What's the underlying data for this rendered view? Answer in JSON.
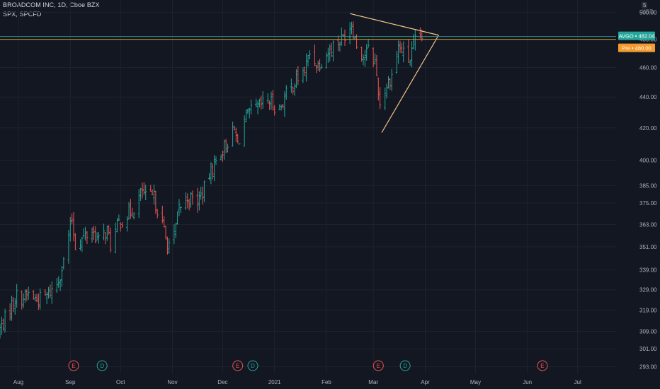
{
  "header": {
    "title": "BROADCOM INC, 1D, Cboe BZX",
    "subtitle": "SPX, SPCFD"
  },
  "scale": {
    "mode_letter": "5",
    "currency": "USD"
  },
  "colors": {
    "background": "#131722",
    "up": "#26a69a",
    "down": "#ef5350",
    "axis_text": "#b2b5be",
    "grid": "#1e222d",
    "trendline": "#f5c48a",
    "last_price": "#26a69a",
    "pre_market": "#f59a2c"
  },
  "price_labels": {
    "last": {
      "text": "AVGO • 482.04",
      "value": 482.04
    },
    "pre": {
      "text": "Pre • 480.00",
      "value": 480.0
    }
  },
  "chart_data": {
    "type": "ohlc",
    "title": "BROADCOM INC, 1D, Cboe BZX",
    "scale": "log",
    "ylim": [
      290,
      505
    ],
    "yticks": [
      293,
      301,
      309,
      319,
      329,
      339,
      351,
      363,
      375,
      385,
      400,
      420,
      440,
      460,
      480,
      500
    ],
    "xticks": [
      "Aug",
      "Sep",
      "Oct",
      "Nov",
      "Dec",
      "2021",
      "Feb",
      "Mar",
      "Apr",
      "May",
      "Jun",
      "Jul"
    ],
    "xtick_dates": [
      "2020-08-01",
      "2020-09-01",
      "2020-10-01",
      "2020-11-01",
      "2020-12-01",
      "2021-01-01",
      "2021-02-01",
      "2021-03-01",
      "2021-04-01",
      "2021-05-01",
      "2021-06-01",
      "2021-07-01"
    ],
    "xlim": [
      "2020-07-21",
      "2021-07-24"
    ],
    "path_points": [
      [
        "2020-07-21",
        310
      ],
      [
        "2020-07-23",
        313
      ],
      [
        "2020-07-28",
        322
      ],
      [
        "2020-07-31",
        326
      ],
      [
        "2020-08-04",
        325
      ],
      [
        "2020-08-07",
        327
      ],
      [
        "2020-08-12",
        324
      ],
      [
        "2020-08-18",
        326
      ],
      [
        "2020-08-24",
        332
      ],
      [
        "2020-08-28",
        343
      ],
      [
        "2020-09-02",
        366
      ],
      [
        "2020-09-04",
        352
      ],
      [
        "2020-09-09",
        356
      ],
      [
        "2020-09-14",
        360
      ],
      [
        "2020-09-18",
        354
      ],
      [
        "2020-09-23",
        360
      ],
      [
        "2020-09-25",
        352
      ],
      [
        "2020-09-30",
        364
      ],
      [
        "2020-10-05",
        368
      ],
      [
        "2020-10-09",
        372
      ],
      [
        "2020-10-14",
        382
      ],
      [
        "2020-10-16",
        378
      ],
      [
        "2020-10-21",
        378
      ],
      [
        "2020-10-26",
        363
      ],
      [
        "2020-10-29",
        352
      ],
      [
        "2020-11-02",
        356
      ],
      [
        "2020-11-05",
        372
      ],
      [
        "2020-11-10",
        378
      ],
      [
        "2020-11-16",
        376
      ],
      [
        "2020-11-20",
        383
      ],
      [
        "2020-11-24",
        394
      ],
      [
        "2020-11-30",
        405
      ],
      [
        "2020-12-03",
        410
      ],
      [
        "2020-12-08",
        418
      ],
      [
        "2020-12-10",
        410
      ],
      [
        "2020-12-14",
        425
      ],
      [
        "2020-12-18",
        430
      ],
      [
        "2020-12-22",
        433
      ],
      [
        "2020-12-28",
        438
      ],
      [
        "2021-01-04",
        432
      ],
      [
        "2021-01-08",
        442
      ],
      [
        "2021-01-13",
        450
      ],
      [
        "2021-01-19",
        458
      ],
      [
        "2021-01-22",
        470
      ],
      [
        "2021-01-27",
        462
      ],
      [
        "2021-02-01",
        470
      ],
      [
        "2021-02-05",
        476
      ],
      [
        "2021-02-10",
        480
      ],
      [
        "2021-02-16",
        492
      ],
      [
        "2021-02-19",
        476
      ],
      [
        "2021-02-23",
        468
      ],
      [
        "2021-02-26",
        472
      ],
      [
        "2021-03-02",
        464
      ],
      [
        "2021-03-05",
        435
      ],
      [
        "2021-03-09",
        448
      ],
      [
        "2021-03-12",
        455
      ],
      [
        "2021-03-16",
        475
      ],
      [
        "2021-03-19",
        470
      ],
      [
        "2021-03-23",
        466
      ],
      [
        "2021-03-26",
        478
      ],
      [
        "2021-03-30",
        482
      ]
    ],
    "last_price": 482.04,
    "pre_market_price": 480.0,
    "trendlines": [
      {
        "from": [
          "2021-02-15",
          499
        ],
        "to": [
          "2021-04-09",
          483
        ]
      },
      {
        "from": [
          "2021-03-06",
          417
        ],
        "to": [
          "2021-04-09",
          483
        ]
      }
    ],
    "events": [
      {
        "type": "E",
        "date": "2020-09-03",
        "color": "#ef5350"
      },
      {
        "type": "D",
        "date": "2020-09-20",
        "color": "#26a69a"
      },
      {
        "type": "E",
        "date": "2020-12-10",
        "color": "#ef5350"
      },
      {
        "type": "D",
        "date": "2020-12-19",
        "color": "#26a69a"
      },
      {
        "type": "E",
        "date": "2021-03-04",
        "color": "#ef5350"
      },
      {
        "type": "D",
        "date": "2021-03-20",
        "color": "#26a69a"
      },
      {
        "type": "E",
        "date": "2021-06-10",
        "color": "#ef5350"
      }
    ]
  }
}
